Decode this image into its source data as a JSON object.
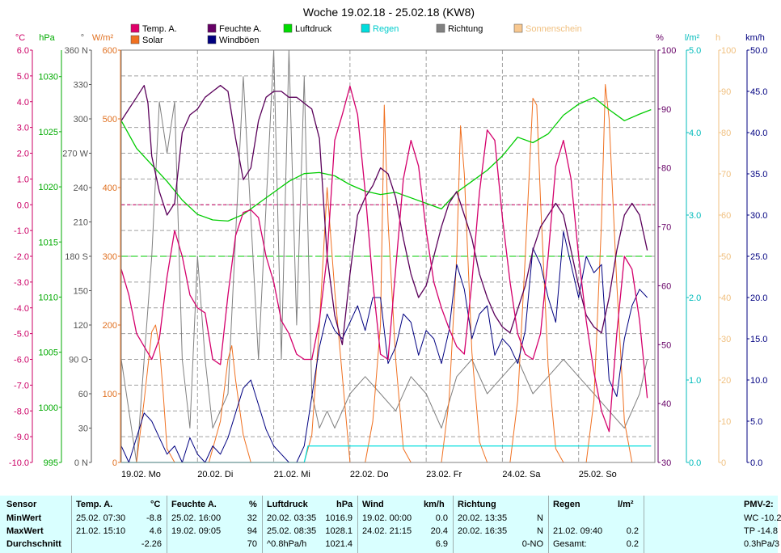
{
  "chart_data": {
    "type": "line",
    "title": "Woche 19.02.18 - 25.02.18 (KW8)",
    "x_ticks": [
      "19.02. Mo",
      "20.02. Di",
      "21.02. Mi",
      "22.02. Do",
      "23.02. Fr",
      "24.02. Sa",
      "25.02. So"
    ],
    "axes": {
      "temp": {
        "unit": "°C",
        "color": "#cc0066",
        "ylim": [
          -10,
          6
        ],
        "ticks": [
          "6.0",
          "5.0",
          "4.0",
          "3.0",
          "2.0",
          "1.0",
          "0.0",
          "-1.0",
          "-2.0",
          "-3.0",
          "-4.0",
          "-5.0",
          "-6.0",
          "-7.0",
          "-8.0",
          "-9.0",
          "-10.0"
        ]
      },
      "pressure": {
        "unit": "hPa",
        "color": "#00aa00",
        "ylim": [
          995,
          1032.4
        ],
        "ticks": [
          "1030",
          "1025",
          "1020",
          "1015",
          "1010",
          "1005",
          "1000",
          "995"
        ]
      },
      "direction": {
        "unit": "°",
        "color": "#555555",
        "ylim": [
          0,
          360
        ],
        "ticks": [
          "360 N",
          "330",
          "300",
          "270 W",
          "240",
          "210",
          "180 S",
          "150",
          "120",
          "90 O",
          "60",
          "30",
          "0 N"
        ]
      },
      "solar": {
        "unit": "W/m²",
        "color": "#e07020",
        "ylim": [
          0,
          600
        ],
        "ticks": [
          "600",
          "500",
          "400",
          "300",
          "200",
          "100",
          "0"
        ]
      },
      "humidity": {
        "unit": "%",
        "color": "#660066",
        "ylim": [
          30,
          100
        ],
        "ticks": [
          "100",
          "90",
          "80",
          "70",
          "60",
          "50",
          "40",
          "30"
        ]
      },
      "rain": {
        "unit": "l/m²",
        "color": "#00bbbb",
        "ylim": [
          0,
          5
        ],
        "ticks": [
          "5.0",
          "4.0",
          "3.0",
          "2.0",
          "1.0",
          "0.0"
        ]
      },
      "sunshine": {
        "unit": "h",
        "color": "#f0c080",
        "ylim": [
          0,
          100
        ],
        "ticks": [
          "100",
          "90",
          "80",
          "70",
          "60",
          "50",
          "40",
          "30",
          "20",
          "10",
          "0"
        ]
      },
      "wind": {
        "unit": "km/h",
        "color": "#000080",
        "ylim": [
          0,
          50
        ],
        "ticks": [
          "50.0",
          "45.0",
          "40.0",
          "35.0",
          "30.0",
          "25.0",
          "20.0",
          "15.0",
          "10.0",
          "5.0",
          "0.0"
        ]
      }
    },
    "legend": [
      {
        "name": "Temp. A.",
        "color": "#e0006a"
      },
      {
        "name": "Solar",
        "color": "#f07020"
      },
      {
        "name": "Feuchte A.",
        "color": "#660066"
      },
      {
        "name": "Windböen",
        "color": "#00007f"
      },
      {
        "name": "Luftdruck",
        "color": "#00dd00"
      },
      {
        "name": "Regen",
        "color": "#00dddd"
      },
      {
        "name": "Richtung",
        "color": "#808080"
      },
      {
        "name": "Sonnenschein",
        "color": "#f8c890"
      }
    ],
    "series": [
      {
        "name": "Temp. A.",
        "axis": "temp",
        "color": "#d4006c",
        "x": [
          0,
          0.1,
          0.2,
          0.3,
          0.4,
          0.5,
          0.6,
          0.7,
          0.8,
          0.9,
          1.0,
          1.1,
          1.2,
          1.3,
          1.4,
          1.5,
          1.6,
          1.7,
          1.8,
          1.9,
          2.0,
          2.1,
          2.2,
          2.3,
          2.4,
          2.5,
          2.6,
          2.7,
          2.8,
          2.9,
          3.0,
          3.1,
          3.2,
          3.3,
          3.4,
          3.5,
          3.6,
          3.7,
          3.8,
          3.9,
          4.0,
          4.1,
          4.2,
          4.3,
          4.4,
          4.5,
          4.6,
          4.7,
          4.8,
          4.9,
          5.0,
          5.1,
          5.2,
          5.3,
          5.4,
          5.5,
          5.6,
          5.7,
          5.8,
          5.9,
          6.0,
          6.1,
          6.2,
          6.3,
          6.4,
          6.5,
          6.6,
          6.7,
          6.8,
          6.9
        ],
        "y": [
          -2.5,
          -3.5,
          -5.0,
          -5.5,
          -6.0,
          -5.2,
          -2.8,
          -1.0,
          -2.0,
          -3.5,
          -4.0,
          -4.2,
          -6.0,
          -6.2,
          -3.5,
          -1.2,
          -0.3,
          -0.2,
          -0.5,
          -2.0,
          -3.0,
          -4.5,
          -5.0,
          -5.8,
          -6.0,
          -6.0,
          -4.5,
          -2.0,
          2.5,
          3.5,
          4.6,
          3.5,
          0.5,
          -3.0,
          -5.8,
          -6.0,
          -2.5,
          1.0,
          2.5,
          1.5,
          -1.0,
          -3.0,
          -4.0,
          -4.8,
          -5.5,
          -5.8,
          -3.0,
          0.5,
          2.9,
          2.5,
          -0.5,
          -3.0,
          -5.0,
          -5.8,
          -6.0,
          -5.0,
          -2.0,
          1.5,
          2.5,
          1.0,
          -2.0,
          -4.5,
          -6.5,
          -8.0,
          -8.8,
          -5.0,
          -2.0,
          -2.5,
          -4.5,
          -7.5
        ]
      },
      {
        "name": "Feuchte A.",
        "axis": "humidity",
        "color": "#5a005a",
        "x": [
          0,
          0.1,
          0.2,
          0.3,
          0.35,
          0.4,
          0.5,
          0.6,
          0.7,
          0.8,
          0.9,
          1.0,
          1.1,
          1.2,
          1.3,
          1.4,
          1.5,
          1.6,
          1.7,
          1.8,
          1.9,
          2.0,
          2.1,
          2.2,
          2.3,
          2.4,
          2.5,
          2.6,
          2.7,
          2.8,
          2.9,
          3.0,
          3.1,
          3.2,
          3.3,
          3.4,
          3.5,
          3.6,
          3.7,
          3.8,
          3.9,
          4.0,
          4.1,
          4.2,
          4.3,
          4.4,
          4.5,
          4.6,
          4.7,
          4.8,
          4.9,
          5.0,
          5.1,
          5.2,
          5.3,
          5.4,
          5.5,
          5.6,
          5.7,
          5.8,
          5.9,
          6.0,
          6.1,
          6.2,
          6.3,
          6.4,
          6.5,
          6.6,
          6.7,
          6.8,
          6.9
        ],
        "y": [
          88,
          90,
          92,
          94,
          91,
          82,
          76,
          72,
          74,
          86,
          89,
          90,
          92,
          93,
          94,
          93,
          85,
          78,
          80,
          88,
          92,
          93,
          93,
          92,
          92,
          91,
          90,
          85,
          65,
          55,
          50,
          62,
          72,
          75,
          77,
          80,
          79,
          75,
          68,
          62,
          58,
          60,
          65,
          70,
          74,
          76,
          72,
          68,
          62,
          58,
          55,
          53,
          52,
          56,
          60,
          66,
          70,
          72,
          74,
          72,
          66,
          60,
          55,
          53,
          52,
          58,
          66,
          72,
          74,
          72,
          66
        ]
      },
      {
        "name": "Luftdruck",
        "axis": "pressure",
        "color": "#00cc00",
        "x": [
          0,
          0.2,
          0.4,
          0.6,
          0.8,
          1.0,
          1.2,
          1.4,
          1.6,
          1.8,
          2.0,
          2.2,
          2.4,
          2.6,
          2.8,
          3.0,
          3.2,
          3.4,
          3.6,
          3.8,
          4.0,
          4.2,
          4.4,
          4.6,
          4.8,
          5.0,
          5.2,
          5.4,
          5.6,
          5.8,
          6.0,
          6.2,
          6.4,
          6.6,
          6.8,
          6.95
        ],
        "y": [
          1026.0,
          1023.5,
          1022.0,
          1020.5,
          1018.8,
          1017.5,
          1017.0,
          1016.9,
          1017.5,
          1018.5,
          1019.5,
          1020.5,
          1021.2,
          1021.3,
          1021.0,
          1020.2,
          1019.6,
          1019.3,
          1019.5,
          1019.0,
          1018.5,
          1018.0,
          1019.5,
          1020.5,
          1021.5,
          1022.8,
          1024.5,
          1024.0,
          1024.8,
          1026.5,
          1027.5,
          1028.1,
          1027.0,
          1026.0,
          1026.6,
          1027.0
        ]
      },
      {
        "name": "Windböen",
        "axis": "wind",
        "color": "#000080",
        "x": [
          0,
          0.1,
          0.2,
          0.3,
          0.4,
          0.5,
          0.6,
          0.7,
          0.8,
          0.9,
          1.0,
          1.1,
          1.2,
          1.3,
          1.4,
          1.5,
          1.6,
          1.7,
          1.8,
          1.9,
          2.0,
          2.1,
          2.2,
          2.3,
          2.4,
          2.5,
          2.6,
          2.7,
          2.8,
          2.9,
          3.0,
          3.1,
          3.2,
          3.3,
          3.4,
          3.5,
          3.6,
          3.7,
          3.8,
          3.9,
          4.0,
          4.1,
          4.2,
          4.3,
          4.4,
          4.5,
          4.6,
          4.7,
          4.8,
          4.9,
          5.0,
          5.1,
          5.2,
          5.3,
          5.4,
          5.5,
          5.6,
          5.7,
          5.8,
          5.9,
          6.0,
          6.1,
          6.2,
          6.3,
          6.4,
          6.5,
          6.6,
          6.7,
          6.8,
          6.9
        ],
        "y": [
          2,
          0,
          3,
          6,
          5,
          3,
          1,
          2,
          0,
          3,
          1,
          0,
          2,
          1,
          3,
          6,
          9,
          10,
          7,
          4,
          2,
          1,
          0,
          0,
          2,
          8,
          14,
          18,
          16,
          15,
          17,
          19,
          16,
          20,
          20,
          12,
          14,
          18,
          17,
          13,
          16,
          15,
          12,
          16,
          24,
          21,
          15,
          18,
          19,
          13,
          15,
          14,
          12,
          16,
          26,
          24,
          20,
          17,
          28,
          24,
          20,
          25,
          23,
          24,
          10,
          8,
          15,
          19,
          21,
          20
        ]
      },
      {
        "name": "Richtung",
        "axis": "direction",
        "color": "#808080",
        "x": [
          0,
          0.2,
          0.4,
          0.5,
          0.6,
          0.7,
          0.8,
          0.9,
          1.0,
          1.1,
          1.2,
          1.4,
          1.6,
          1.8,
          2.0,
          2.1,
          2.2,
          2.3,
          2.4,
          2.5,
          2.6,
          2.7,
          2.8,
          3.0,
          3.2,
          3.4,
          3.6,
          3.8,
          4.0,
          4.2,
          4.4,
          4.6,
          4.8,
          5.0,
          5.2,
          5.4,
          5.6,
          5.8,
          6.0,
          6.2,
          6.4,
          6.6,
          6.8,
          6.9
        ],
        "y": [
          90,
          0,
          180,
          315,
          270,
          315,
          90,
          30,
          180,
          90,
          30,
          60,
          337,
          90,
          360,
          90,
          360,
          120,
          337,
          60,
          30,
          45,
          30,
          60,
          75,
          60,
          45,
          75,
          60,
          30,
          75,
          90,
          60,
          75,
          90,
          60,
          75,
          90,
          75,
          60,
          45,
          30,
          60,
          90
        ]
      },
      {
        "name": "Solar",
        "axis": "solar",
        "color": "#f07020",
        "x": [
          0,
          0.2,
          0.3,
          0.4,
          0.45,
          0.5,
          0.55,
          0.6,
          0.7,
          0.8,
          1.0,
          1.15,
          1.3,
          1.4,
          1.45,
          1.5,
          1.6,
          1.7,
          1.8,
          2.0,
          2.2,
          2.4,
          2.5,
          2.6,
          2.7,
          2.8,
          3.0,
          3.2,
          3.3,
          3.4,
          3.45,
          3.5,
          3.6,
          3.7,
          3.8,
          4.0,
          4.2,
          4.3,
          4.4,
          4.45,
          4.5,
          4.6,
          4.7,
          4.8,
          5.0,
          5.1,
          5.2,
          5.3,
          5.4,
          5.45,
          5.5,
          5.6,
          5.7,
          5.8,
          6.0,
          6.1,
          6.2,
          6.3,
          6.35,
          6.4,
          6.5,
          6.6,
          6.7,
          6.9
        ],
        "y": [
          0,
          0,
          90,
          190,
          200,
          170,
          100,
          20,
          0,
          0,
          0,
          0,
          60,
          150,
          170,
          120,
          40,
          0,
          0,
          0,
          0,
          0,
          40,
          200,
          400,
          250,
          0,
          0,
          60,
          200,
          520,
          350,
          150,
          20,
          0,
          0,
          0,
          90,
          300,
          490,
          420,
          160,
          30,
          0,
          0,
          0,
          90,
          300,
          530,
          520,
          380,
          140,
          20,
          0,
          0,
          0,
          90,
          350,
          550,
          500,
          260,
          60,
          0,
          0
        ]
      },
      {
        "name": "Regen",
        "axis": "rain",
        "color": "#00dddd",
        "x": [
          0,
          2.4,
          2.45,
          6.95
        ],
        "y": [
          0,
          0,
          0.2,
          0.2
        ]
      }
    ]
  },
  "stats": {
    "headers": {
      "sensor": "Sensor",
      "temp": "Temp. A.",
      "temp_unit": "°C",
      "hum": "Feuchte A.",
      "hum_unit": "%",
      "press": "Luftdruck",
      "press_unit": "hPa",
      "wind": "Wind",
      "wind_unit": "km/h",
      "dir": "Richtung",
      "rain": "Regen",
      "rain_unit": "l/m²",
      "pmv": "PMV-2:"
    },
    "row_labels": [
      "MinWert",
      "MaxWert",
      "Durchschnitt"
    ],
    "min": {
      "temp_time": "25.02.  07:30",
      "temp_val": "-8.8",
      "hum_time": "25.02.  16:00",
      "hum_val": "32",
      "press_time": "20.02.  03:35",
      "press_val": "1016.9",
      "wind_time": "19.02.  00:00",
      "wind_val": "0.0",
      "dir_time": "20.02.  13:35",
      "dir_val": "N",
      "pmv": "WC -10.2"
    },
    "max": {
      "temp_time": "21.02.  15:10",
      "temp_val": "4.6",
      "hum_time": "19.02.  09:05",
      "hum_val": "94",
      "press_time": "25.02.  08:35",
      "press_val": "1028.1",
      "wind_time": "24.02.  21:15",
      "wind_val": "20.4",
      "dir_time": "20.02.  16:35",
      "dir_val": "N",
      "rain_time": "21.02.  09:40",
      "rain_val": "0.2",
      "pmv": "TP -14.8"
    },
    "avg": {
      "temp_val": "-2.26",
      "hum_val": "70",
      "press_trend": "^0.8hPa/h",
      "press_val": "1021.4",
      "wind_val": "6.9",
      "dir_val": "0-NO",
      "rain_label": "Gesamt:",
      "rain_val": "0.2",
      "pmv": "0.3hPa/3"
    }
  }
}
